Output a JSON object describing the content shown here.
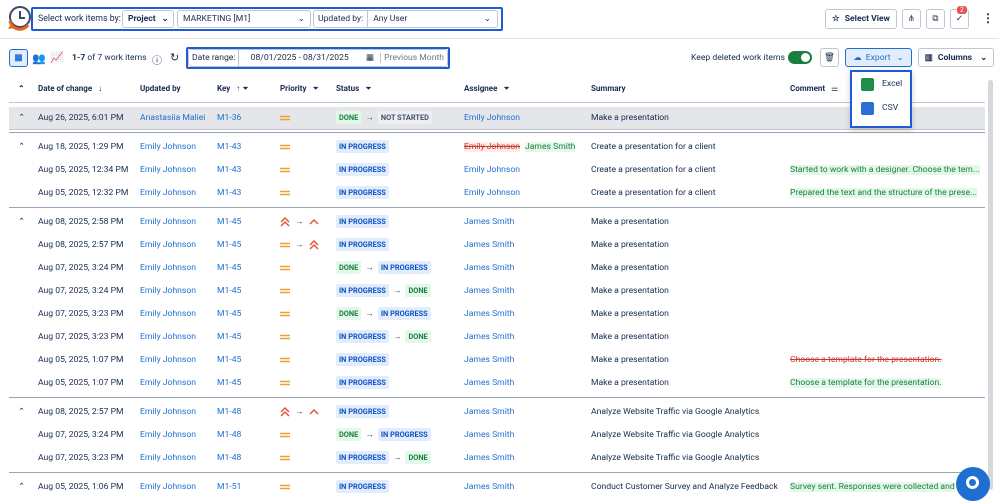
{
  "toolbar": {
    "select_label": "Select work items by:",
    "select_value": "Project",
    "project": "MARKETING [M1]",
    "updated_label": "Updated by:",
    "updated_value": "Any User",
    "select_view": "Select View",
    "notifications": "2"
  },
  "controls": {
    "range": "1-7",
    "count": "of 7 work items",
    "date_label": "Date range:",
    "date_value": "08/01/2025 - 08/31/2025",
    "preset": "Previous Month",
    "keep_deleted": "Keep deleted work items",
    "export": "Export",
    "columns": "Columns"
  },
  "export_menu": [
    "Excel",
    "CSV"
  ],
  "table": {
    "headers": [
      "Date of change",
      "Updated by",
      "Key",
      "Priority",
      "Status",
      "Assignee",
      "Summary",
      "Comment"
    ],
    "groups": [
      {
        "rows": [
          {
            "date": "Aug 26, 2025, 6:01 PM",
            "updated_by": "Anastasiia Maliei",
            "key": "M1-36",
            "priority": [
              "medium"
            ],
            "status": [
              "DONE",
              "NOT STARTED"
            ],
            "assignee": [
              "Emily Johnson"
            ],
            "summary": "Make a presentation",
            "selected": true
          }
        ]
      },
      {
        "rows": [
          {
            "date": "Aug 18, 2025, 1:29 PM",
            "updated_by": "Emily Johnson",
            "key": "M1-43",
            "priority": [
              "medium"
            ],
            "status": [
              "IN PROGRESS"
            ],
            "assignee": [
              "Emily Johnson",
              "James Smith"
            ],
            "summary": "Create a presentation for a client"
          },
          {
            "date": "Aug 05, 2025, 12:34 PM",
            "updated_by": "Emily Johnson",
            "key": "M1-43",
            "priority": [
              "medium"
            ],
            "status": [
              "IN PROGRESS"
            ],
            "assignee": [
              "Emily Johnson"
            ],
            "summary": "Create a presentation for a client",
            "comment": "Started to work with a designer. Choose the tem..."
          },
          {
            "date": "Aug 05, 2025, 12:32 PM",
            "updated_by": "Emily Johnson",
            "key": "M1-43",
            "priority": [
              "medium"
            ],
            "status": [
              "IN PROGRESS"
            ],
            "assignee": [
              "Emily Johnson"
            ],
            "summary": "Create a presentation for a client",
            "comment": "Prepared the text and the structure of the prese..."
          }
        ]
      },
      {
        "rows": [
          {
            "date": "Aug 08, 2025, 2:58 PM",
            "updated_by": "Emily Johnson",
            "key": "M1-45",
            "priority": [
              "highest",
              "high"
            ],
            "status": [
              "IN PROGRESS"
            ],
            "assignee": [
              "James Smith"
            ],
            "summary": "Make a presentation"
          },
          {
            "date": "Aug 08, 2025, 2:57 PM",
            "updated_by": "Emily Johnson",
            "key": "M1-45",
            "priority": [
              "medium",
              "highest"
            ],
            "status": [
              "IN PROGRESS"
            ],
            "assignee": [
              "James Smith"
            ],
            "summary": "Make a presentation"
          },
          {
            "date": "Aug 07, 2025, 3:24 PM",
            "updated_by": "Emily Johnson",
            "key": "M1-45",
            "priority": [
              "medium"
            ],
            "status": [
              "DONE",
              "IN PROGRESS"
            ],
            "assignee": [
              "James Smith"
            ],
            "summary": "Make a presentation"
          },
          {
            "date": "Aug 07, 2025, 3:24 PM",
            "updated_by": "Emily Johnson",
            "key": "M1-45",
            "priority": [
              "medium"
            ],
            "status": [
              "IN PROGRESS",
              "DONE"
            ],
            "assignee": [
              "James Smith"
            ],
            "summary": "Make a presentation"
          },
          {
            "date": "Aug 07, 2025, 3:23 PM",
            "updated_by": "Emily Johnson",
            "key": "M1-45",
            "priority": [
              "medium"
            ],
            "status": [
              "DONE",
              "IN PROGRESS"
            ],
            "assignee": [
              "James Smith"
            ],
            "summary": "Make a presentation"
          },
          {
            "date": "Aug 07, 2025, 3:23 PM",
            "updated_by": "Emily Johnson",
            "key": "M1-45",
            "priority": [
              "medium"
            ],
            "status": [
              "IN PROGRESS",
              "DONE"
            ],
            "assignee": [
              "James Smith"
            ],
            "summary": "Make a presentation"
          },
          {
            "date": "Aug 05, 2025, 1:07 PM",
            "updated_by": "Emily Johnson",
            "key": "M1-45",
            "priority": [
              "medium"
            ],
            "status": [
              "IN PROGRESS"
            ],
            "assignee": [
              "James Smith"
            ],
            "summary": "Make a presentation",
            "comment": "Choose a template for the presentation.",
            "comment_deleted": true
          },
          {
            "date": "Aug 05, 2025, 1:07 PM",
            "updated_by": "Emily Johnson",
            "key": "M1-45",
            "priority": [
              "medium"
            ],
            "status": [
              "IN PROGRESS"
            ],
            "assignee": [
              "James Smith"
            ],
            "summary": "Make a presentation",
            "comment": "Choose a template for the presentation."
          }
        ]
      },
      {
        "rows": [
          {
            "date": "Aug 08, 2025, 2:57 PM",
            "updated_by": "Emily Johnson",
            "key": "M1-48",
            "priority": [
              "highest",
              "high"
            ],
            "status": [
              "IN PROGRESS"
            ],
            "assignee": [
              "James Smith"
            ],
            "summary": "Analyze Website Traffic via Google Analytics"
          },
          {
            "date": "Aug 07, 2025, 3:24 PM",
            "updated_by": "Emily Johnson",
            "key": "M1-48",
            "priority": [
              "medium"
            ],
            "status": [
              "DONE",
              "IN PROGRESS"
            ],
            "assignee": [
              "James Smith"
            ],
            "summary": "Analyze Website Traffic via Google Analytics"
          },
          {
            "date": "Aug 07, 2025, 3:23 PM",
            "updated_by": "Emily Johnson",
            "key": "M1-48",
            "priority": [
              "medium"
            ],
            "status": [
              "IN PROGRESS",
              "DONE"
            ],
            "assignee": [
              "James Smith"
            ],
            "summary": "Analyze Website Traffic via Google Analytics"
          }
        ]
      },
      {
        "rows": [
          {
            "date": "Aug 05, 2025, 1:06 PM",
            "updated_by": "Emily Johnson",
            "key": "M1-51",
            "priority": [
              "medium"
            ],
            "status": [
              "IN PROGRESS"
            ],
            "assignee": [
              "James Smith"
            ],
            "summary": "Conduct Customer Survey and Analyze Feedback",
            "comment": "Survey sent. Responses were collected and"
          }
        ]
      }
    ]
  }
}
